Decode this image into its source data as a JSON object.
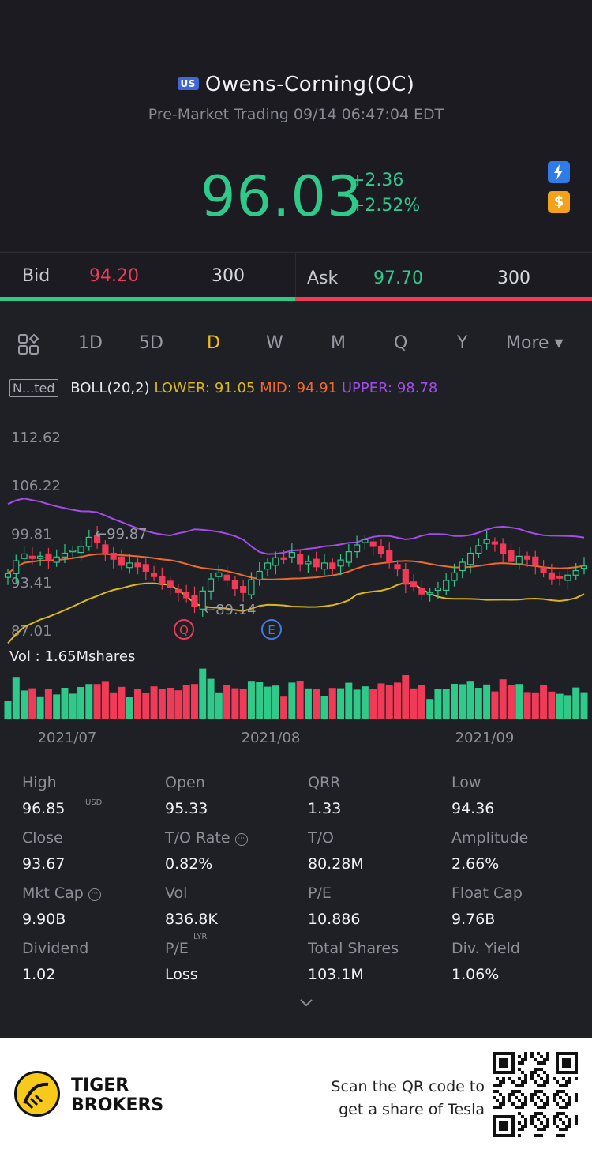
{
  "header": {
    "market_badge": "US",
    "title": "Owens-Corning(OC)",
    "subtitle": "Pre-Market Trading 09/14 06:47:04 EDT",
    "price": "96.03",
    "change_abs": "+2.36",
    "change_pct": "+2.52%",
    "icons": [
      "lightning-icon",
      "dollar-icon"
    ]
  },
  "quote": {
    "bid_label": "Bid",
    "bid_price": "94.20",
    "bid_size": "300",
    "ask_label": "Ask",
    "ask_price": "97.70",
    "ask_size": "300"
  },
  "tabs": {
    "items": [
      "1D",
      "5D",
      "D",
      "W",
      "M",
      "Q",
      "Y",
      "More ▾"
    ],
    "active": "D"
  },
  "indicator": {
    "button": "N...ted",
    "boll": "BOLL(20,2)",
    "lower": "LOWER: 91.05",
    "mid": "MID: 94.91",
    "upper": "UPPER: 98.78"
  },
  "chart_data": {
    "type": "candlestick",
    "y_ticks": [
      "112.62",
      "106.22",
      "99.81",
      "93.41",
      "87.01"
    ],
    "ylim": [
      87.01,
      112.62
    ],
    "x_ticks": [
      "2021/07",
      "2021/08",
      "2021/09"
    ],
    "annotations": {
      "high": "←99.87",
      "low": "←89.14",
      "markers": [
        "Q",
        "E"
      ]
    },
    "volume_label": "Vol  : 1.65Mshares",
    "closes": [
      94.5,
      96.2,
      97.1,
      96.5,
      96.8,
      96.3,
      96.7,
      97.2,
      97.6,
      98.1,
      99.3,
      98.6,
      97.2,
      96.4,
      95.6,
      95.9,
      95.4,
      94.8,
      94.1,
      93.2,
      92.7,
      92.0,
      91.3,
      90.1,
      92.2,
      93.8,
      94.6,
      93.6,
      92.5,
      92.0,
      93.7,
      94.8,
      95.9,
      96.6,
      96.4,
      97.3,
      95.8,
      96.1,
      95.4,
      95.9,
      95.2,
      96.3,
      97.4,
      98.3,
      99.0,
      98.1,
      97.2,
      96.0,
      95.1,
      93.1,
      92.8,
      91.8,
      92.0,
      92.6,
      93.6,
      94.6,
      96.0,
      97.2,
      98.2,
      99.0,
      98.4,
      97.2,
      96.1,
      96.8,
      96.4,
      95.6,
      94.6,
      93.8,
      93.9,
      94.3,
      94.9,
      95.5
    ],
    "colors": {
      "up": "#2fc98a",
      "down": "#ef3b57",
      "upper": "#a24de8",
      "mid": "#ee6a2f",
      "lower": "#d9b81e"
    }
  },
  "stats": [
    [
      {
        "label": "High",
        "value": "96.85"
      },
      {
        "label": "Open",
        "value": "95.33"
      },
      {
        "label": "QRR",
        "value": "1.33"
      },
      {
        "label": "Low",
        "value": "94.36"
      }
    ],
    [
      {
        "label": "Close",
        "value": "93.67"
      },
      {
        "label": "T/O Rate",
        "value": "0.82%"
      },
      {
        "label": "T/O",
        "value": "80.28M"
      },
      {
        "label": "Amplitude",
        "value": "2.66%"
      }
    ],
    [
      {
        "label": "Mkt Cap",
        "value": "9.90B"
      },
      {
        "label": "Vol",
        "value": "836.8K"
      },
      {
        "label": "P/E",
        "value": "10.886"
      },
      {
        "label": "Float Cap",
        "value": "9.76B"
      }
    ],
    [
      {
        "label": "Dividend",
        "value": "1.02"
      },
      {
        "label": "P/E",
        "value": "Loss"
      },
      {
        "label": "Total Shares",
        "value": "103.1M"
      },
      {
        "label": "Div. Yield",
        "value": "1.06%"
      }
    ]
  ],
  "stat_sups": {
    "mkt_cap": "USD",
    "pe_lyr": "LYR"
  },
  "footer": {
    "brand_line1": "TIGER",
    "brand_line2": "BROKERS",
    "scan_line1": "Scan the QR code to",
    "scan_line2": "get a share of Tesla"
  }
}
